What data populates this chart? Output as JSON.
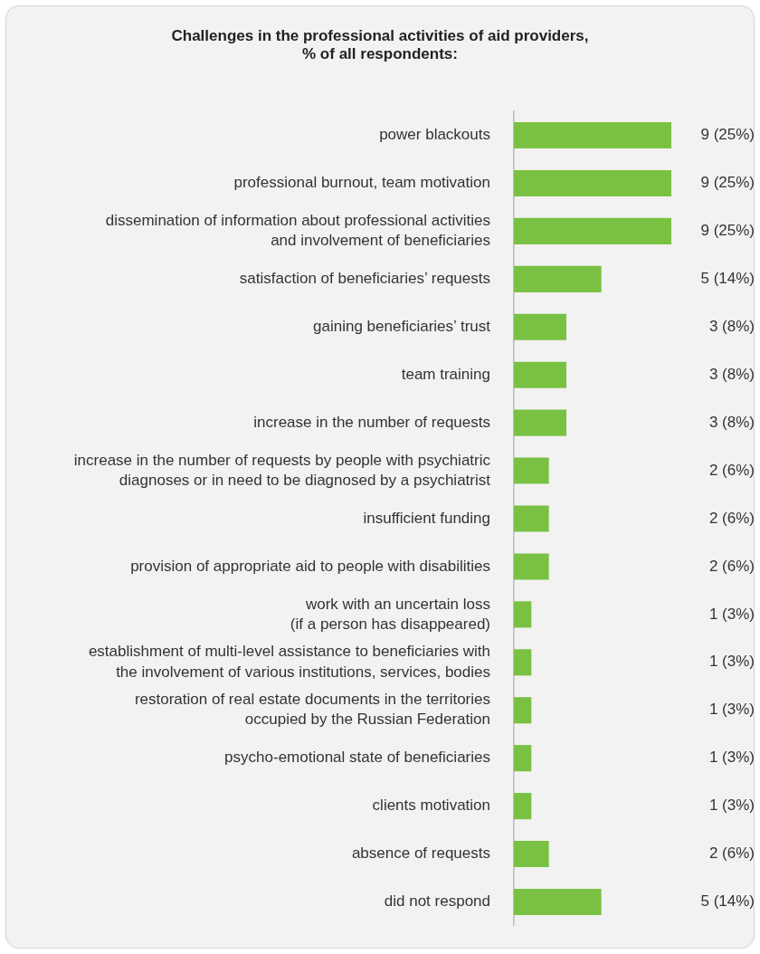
{
  "chart_data": {
    "type": "bar",
    "orientation": "horizontal",
    "title": "Challenges in the professional activities of aid providers,\n% of all respondents:",
    "categories": [
      "power blackouts",
      "professional burnout, team motivation",
      "dissemination of information about professional activities\nand involvement of beneficiaries",
      "satisfaction of beneficiaries’ requests",
      "gaining beneficiaries’ trust",
      "team training",
      "increase in the number of requests",
      "increase in the number of requests by people with psychiatric\ndiagnoses or in need to be diagnosed by a psychiatrist",
      "insufficient funding",
      "provision of appropriate aid to people with disabilities",
      "work with an uncertain loss\n(if a person has disappeared)",
      "establishment of multi-level assistance to beneficiaries with\nthe involvement of various institutions, services, bodies",
      "restoration of real estate documents in the territories\noccupied by the Russian Federation",
      "psycho-emotional state of beneficiaries",
      "clients motivation",
      "absence of requests",
      "did not respond"
    ],
    "values": [
      9,
      9,
      9,
      5,
      3,
      3,
      3,
      2,
      2,
      2,
      1,
      1,
      1,
      1,
      1,
      2,
      5
    ],
    "value_labels": [
      "9 (25%)",
      "9 (25%)",
      "9 (25%)",
      "5 (14%)",
      "3 (8%)",
      "3 (8%)",
      "3 (8%)",
      "2 (6%)",
      "2 (6%)",
      "2 (6%)",
      "1 (3%)",
      "1 (3%)",
      "1 (3%)",
      "1 (3%)",
      "1 (3%)",
      "2 (6%)",
      "5 (14%)"
    ],
    "color": "#7ac143",
    "tick_labels": "y",
    "legend": false
  }
}
